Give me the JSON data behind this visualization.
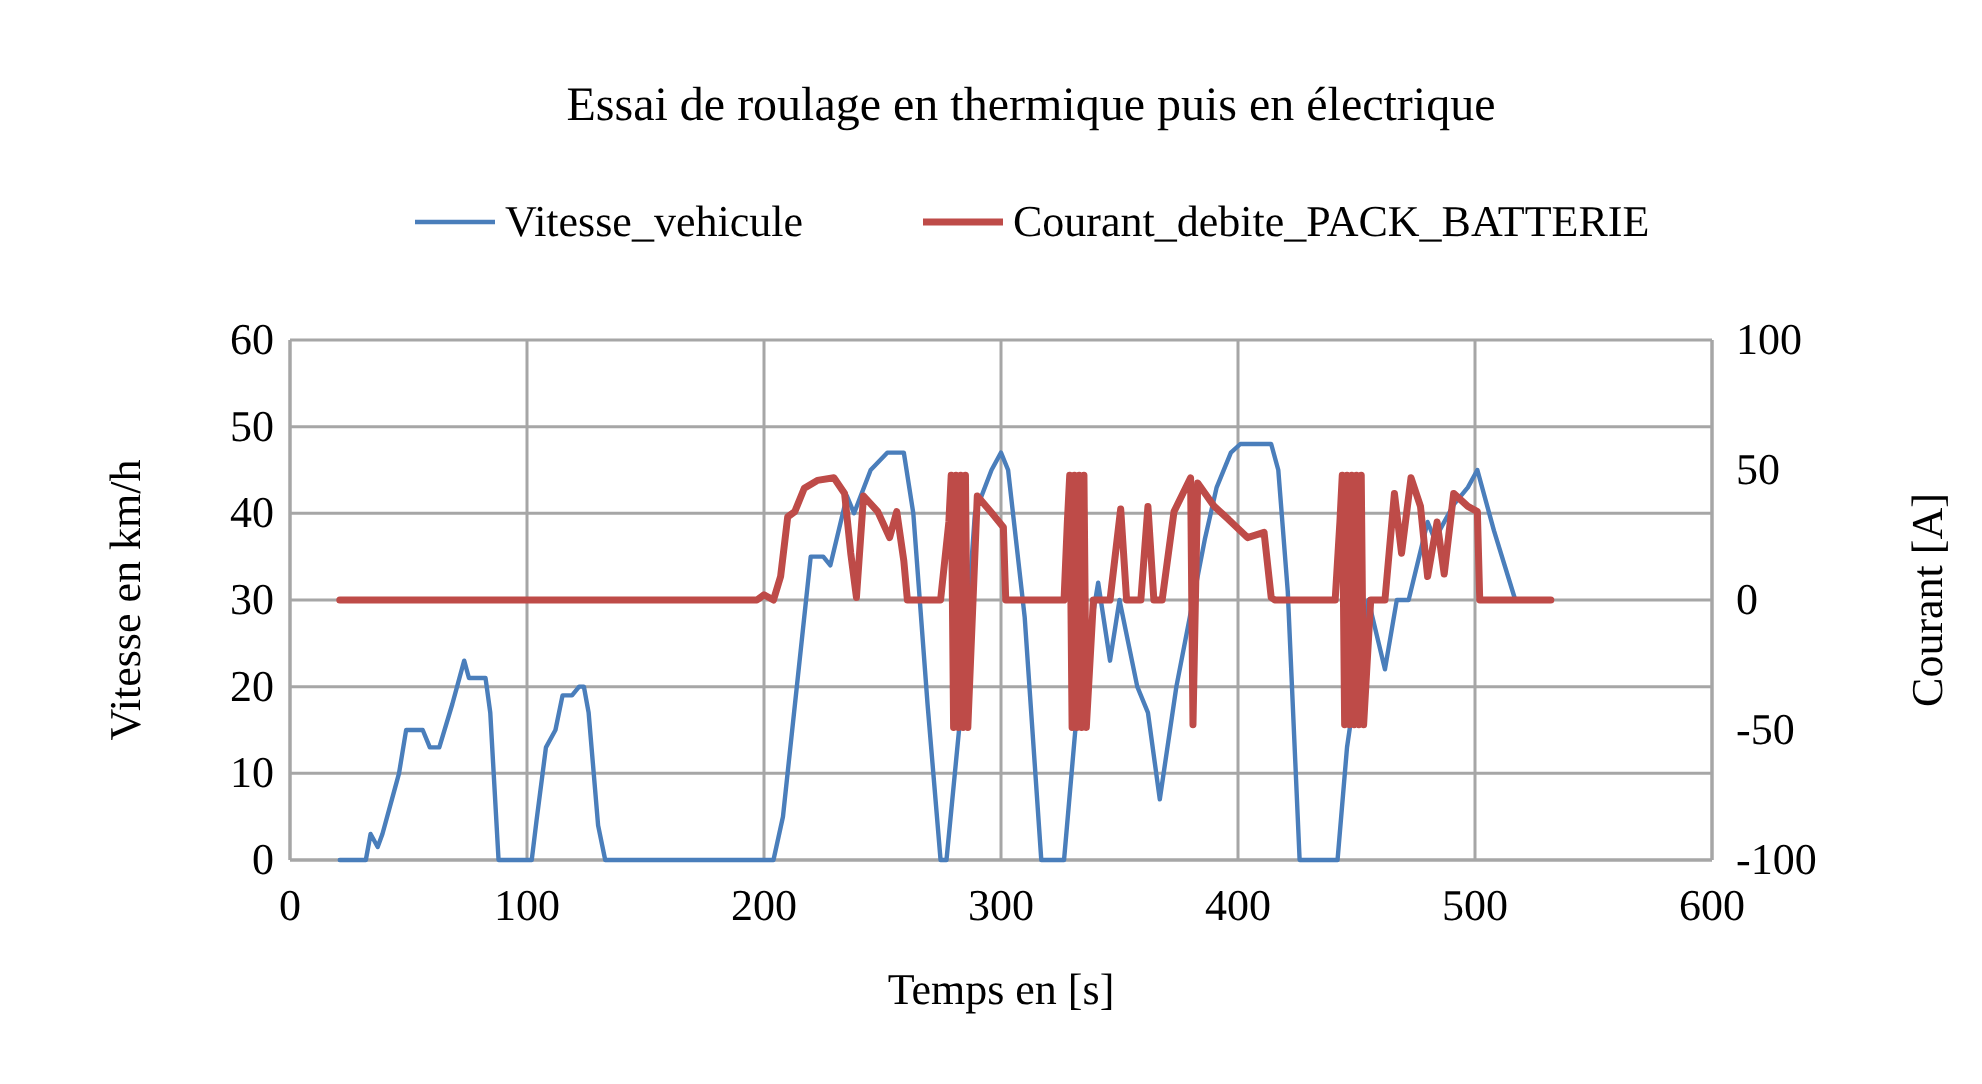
{
  "chart_data": {
    "type": "line",
    "title": "Essai de roulage en thermique  puis en électrique",
    "xlabel": "Temps en [s]",
    "ylabel": "Vitesse en km/h",
    "y2label": "Courant [A]",
    "xlim": [
      0,
      600
    ],
    "xticks": [
      0,
      100,
      200,
      300,
      400,
      500,
      600
    ],
    "ylim": [
      0,
      60
    ],
    "yticks": [
      0,
      10,
      20,
      30,
      40,
      50,
      60
    ],
    "y2lim": [
      -100,
      100
    ],
    "y2ticks": [
      -100,
      -50,
      0,
      50,
      100
    ],
    "grid": true,
    "legend": "top",
    "marker": "none",
    "line_style": "solid",
    "series": [
      {
        "name": "Vitesse_vehicule",
        "color": "#4a7ebb",
        "x": [
          21,
          32,
          34,
          37,
          39,
          43,
          46,
          49,
          56,
          59,
          63,
          68.5,
          73.5,
          75.5,
          82.5,
          84.5,
          88,
          102,
          104,
          108,
          112,
          115,
          119,
          122,
          124,
          126,
          130,
          133,
          204,
          208,
          219.7,
          225,
          228,
          235,
          238,
          245,
          252,
          259,
          263,
          269,
          274.5,
          277,
          283,
          289,
          296,
          300,
          303,
          310,
          317,
          326.6,
          332,
          341,
          346,
          350,
          357.5,
          362,
          367,
          374,
          386,
          391,
          397,
          401,
          414,
          417,
          421,
          426,
          442,
          446,
          455,
          462,
          467,
          472,
          480,
          483,
          491,
          497,
          501,
          508,
          517
        ],
        "values": [
          0,
          0,
          3,
          1.5,
          3,
          7,
          10,
          15,
          15,
          13,
          13,
          18,
          23,
          21,
          21,
          17,
          0,
          0,
          4.5,
          13,
          15,
          19,
          19,
          20,
          20,
          17,
          4,
          0,
          0,
          5,
          35,
          35,
          34,
          42,
          40,
          45,
          47,
          47,
          40,
          18,
          0,
          0,
          17,
          40,
          45,
          47,
          45,
          28,
          0,
          0,
          17,
          32,
          23,
          30,
          20,
          17,
          7,
          20,
          37,
          43,
          47,
          48,
          48,
          45,
          31,
          0,
          0,
          13,
          30,
          22,
          30,
          30,
          39,
          37,
          41,
          43,
          45,
          38,
          30
        ]
      },
      {
        "name": "Courant_debite_PACK_BATTERIE",
        "color": "#be4b48",
        "axis": "y2",
        "x": [
          21,
          197,
          200,
          204,
          207,
          210,
          213,
          217,
          222.5,
          229.5,
          234,
          236.6,
          239,
          242,
          248,
          253,
          256,
          259,
          260.5,
          274.5,
          278,
          279,
          280,
          281,
          282,
          283,
          284,
          285,
          286,
          290,
          295.6,
          301,
          302,
          326.6,
          328,
          329,
          330,
          331,
          332,
          333,
          334,
          335,
          336,
          339,
          346,
          350.5,
          353,
          359,
          362,
          364.5,
          368,
          373,
          380,
          381,
          383,
          390,
          396,
          404,
          411,
          414,
          415.5,
          441,
          443,
          444,
          445,
          446,
          447,
          448,
          449,
          450,
          451,
          452,
          453,
          456,
          462,
          466,
          469,
          473,
          477,
          480,
          484,
          487,
          491,
          497,
          501,
          502,
          532
        ],
        "values": [
          0,
          0,
          2,
          0,
          9,
          32,
          34,
          43,
          46,
          47,
          41,
          18,
          1,
          40,
          34,
          24,
          34,
          15,
          0,
          0,
          30,
          48,
          -49,
          48,
          -49,
          48,
          -49,
          48,
          -49,
          40,
          34,
          28,
          0,
          0,
          30,
          48,
          -49,
          48,
          -49,
          48,
          -49,
          48,
          -49,
          0,
          0,
          35,
          0,
          0,
          36,
          0,
          0,
          34,
          47,
          -48,
          45,
          36,
          31,
          24,
          26,
          1,
          0,
          0,
          30,
          48,
          -48,
          48,
          -48,
          48,
          -48,
          48,
          -48,
          48,
          -48,
          0,
          0,
          41,
          18,
          47,
          36,
          9,
          30,
          10,
          41,
          36,
          34,
          0,
          0
        ]
      }
    ]
  }
}
